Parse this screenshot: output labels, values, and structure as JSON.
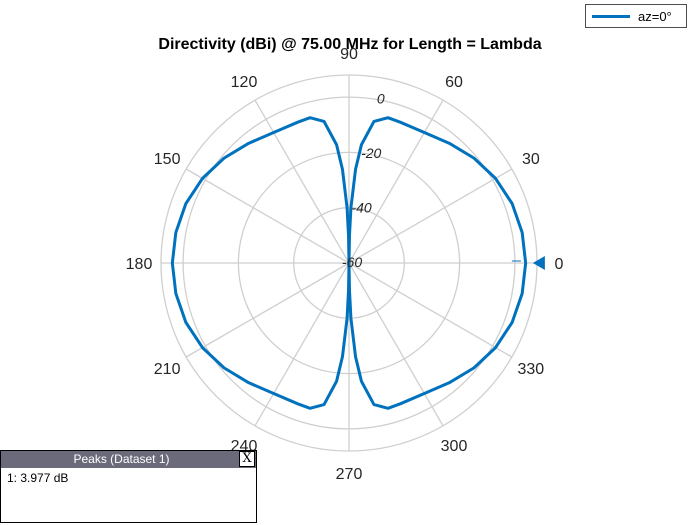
{
  "chart_data": {
    "type": "polar",
    "title": "Directivity (dBi) @ 75.00 MHz for Length = Lambda",
    "angle_ticks": [
      0,
      30,
      60,
      90,
      120,
      150,
      180,
      210,
      240,
      270,
      300,
      330
    ],
    "angle_labels": [
      "0",
      "30",
      "60",
      "90",
      "120",
      "150",
      "180",
      "210",
      "240",
      "270",
      "300",
      "330"
    ],
    "radial_ticks": [
      -60,
      -40,
      -20,
      0
    ],
    "radial_labels": [
      "-60",
      "-40",
      "-20",
      "0"
    ],
    "rlim": [
      -60,
      8
    ],
    "grid": true,
    "legend_position": "top-right",
    "series": [
      {
        "name": "az=0°",
        "color": "#0072bd",
        "angles_deg": [
          0,
          10,
          20,
          30,
          40,
          50,
          60,
          70,
          75,
          80,
          84,
          86,
          88,
          89,
          90,
          91,
          92,
          94,
          96,
          100,
          105,
          110,
          120,
          130,
          140,
          150,
          160,
          170,
          180,
          190,
          200,
          210,
          220,
          230,
          240,
          250,
          255,
          260,
          264,
          266,
          268,
          269,
          270,
          271,
          272,
          274,
          276,
          280,
          285,
          290,
          300,
          310,
          320,
          330,
          340,
          350,
          360
        ],
        "values_dbi": [
          3.9,
          3.6,
          2.8,
          1.2,
          -1.0,
          -3.5,
          -5.5,
          -5.8,
          -5.6,
          -8.0,
          -17.0,
          -26.0,
          -40.0,
          -50.0,
          -60.0,
          -50.0,
          -40.0,
          -26.0,
          -17.0,
          -8.0,
          -5.6,
          -5.8,
          -5.5,
          -3.5,
          -1.0,
          1.2,
          2.8,
          3.6,
          3.9,
          3.6,
          2.8,
          1.2,
          -1.0,
          -3.5,
          -5.5,
          -5.8,
          -5.6,
          -8.0,
          -17.0,
          -26.0,
          -40.0,
          -50.0,
          -60.0,
          -50.0,
          -40.0,
          -26.0,
          -17.0,
          -8.0,
          -5.6,
          -5.8,
          -5.5,
          -3.5,
          -1.0,
          1.2,
          2.8,
          3.6,
          3.9
        ]
      }
    ],
    "peak_marker": {
      "angle_deg": 0,
      "value_dbi": 3.977
    }
  },
  "peaks_panel": {
    "title": "Peaks (Dataset 1)",
    "close_label": "X",
    "rows": [
      "1: 3.977 dB"
    ]
  }
}
